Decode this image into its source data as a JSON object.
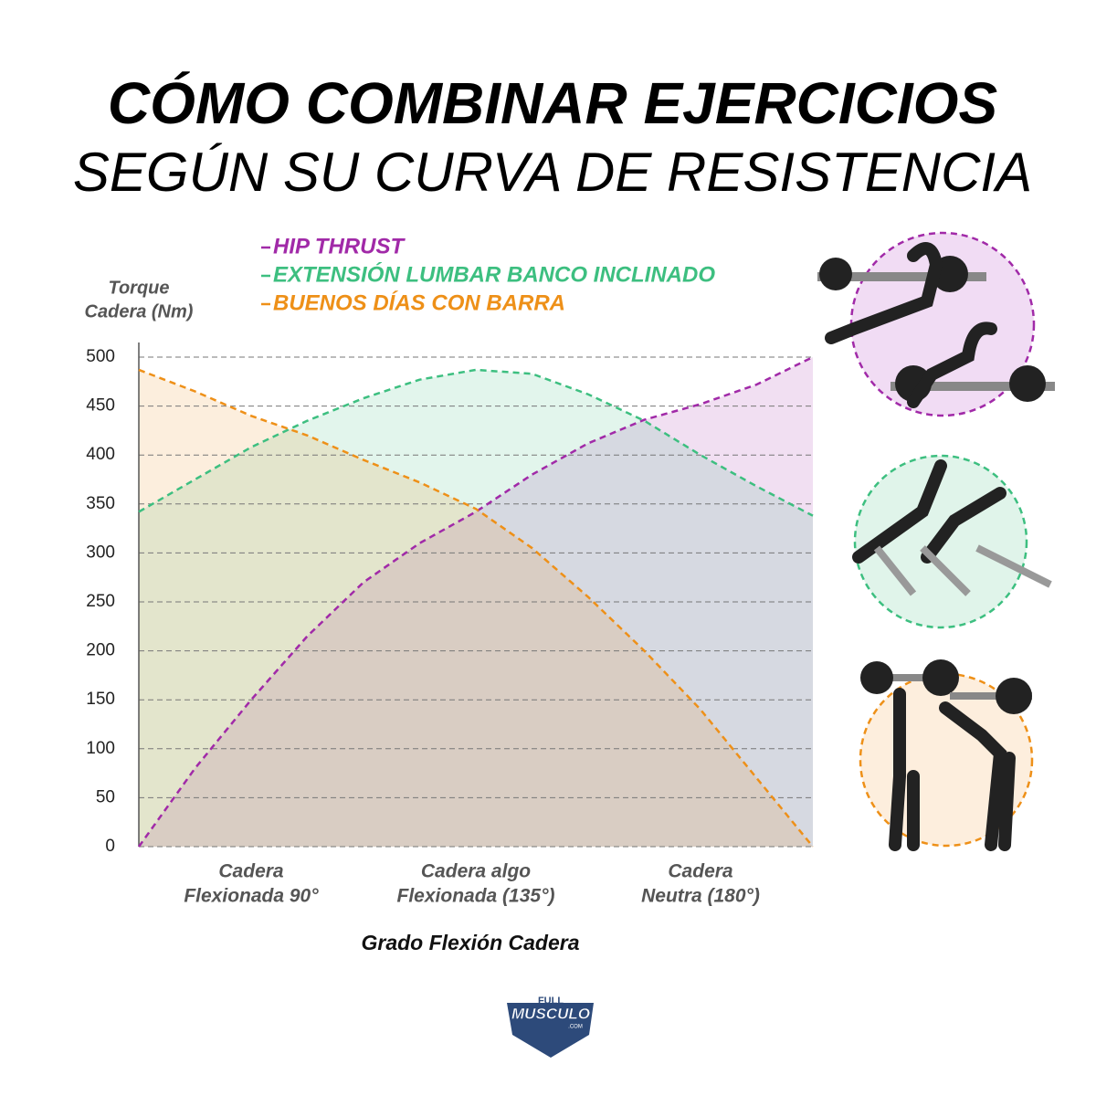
{
  "chart_data": {
    "type": "line",
    "title": "CÓMO COMBINAR EJERCICIOS",
    "subtitle": "SEGÚN SU CURVA DE RESISTENCIA",
    "y_label": [
      "Torque",
      "Cadera (Nm)"
    ],
    "x_label": "Grado Flexión Cadera",
    "x": [
      0,
      0.5,
      1,
      1.5,
      2,
      2.5,
      3,
      3.5,
      4,
      4.5,
      5,
      5.5,
      6
    ],
    "xlim": [
      0,
      6
    ],
    "xticks": [
      {
        "value": 1,
        "label": [
          "Cadera",
          "Flexionada 90°"
        ]
      },
      {
        "value": 3,
        "label": [
          "Cadera algo",
          "Flexionada (135°)"
        ]
      },
      {
        "value": 5,
        "label": [
          "Cadera",
          "Neutra (180°)"
        ]
      }
    ],
    "ylim": [
      0,
      500
    ],
    "yticks": [
      0,
      50,
      100,
      150,
      200,
      250,
      300,
      350,
      400,
      450,
      500
    ],
    "grid": true,
    "series": [
      {
        "name": "HIP THRUST",
        "color": "#a12aa8",
        "values": [
          0,
          80,
          150,
          215,
          270,
          310,
          342,
          380,
          412,
          436,
          452,
          472,
          500
        ]
      },
      {
        "name": "EXTENSIÓN LUMBAR BANCO INCLINADO",
        "color": "#3dbf80",
        "values": [
          342,
          375,
          408,
          435,
          458,
          477,
          487,
          483,
          462,
          435,
          400,
          368,
          338
        ]
      },
      {
        "name": "BUENOS DÍAS CON BARRA",
        "color": "#ee9018",
        "values": [
          487,
          465,
          440,
          420,
          395,
          372,
          345,
          305,
          255,
          200,
          140,
          70,
          0
        ]
      }
    ]
  },
  "logo": {
    "line1": "FULL",
    "line2": "MUSCULO",
    "line3": ".COM"
  }
}
